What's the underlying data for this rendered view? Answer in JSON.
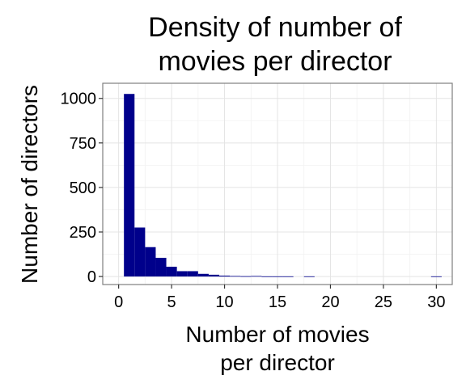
{
  "chart_data": {
    "type": "bar",
    "title_lines": [
      "Density of number of",
      "movies per director"
    ],
    "xlabel_lines": [
      "Number of movies",
      "per director"
    ],
    "ylabel": "Number of directors",
    "xlim": [
      -1.5,
      31.5
    ],
    "ylim": [
      -45,
      1085
    ],
    "x_ticks": [
      0,
      5,
      10,
      15,
      20,
      25,
      30
    ],
    "y_ticks": [
      0,
      250,
      500,
      750,
      1000
    ],
    "bin_width": 1,
    "bins": [
      {
        "x_start": 0.5,
        "x_end": 1.5,
        "count": 1025
      },
      {
        "x_start": 1.5,
        "x_end": 2.5,
        "count": 275
      },
      {
        "x_start": 2.5,
        "x_end": 3.5,
        "count": 165
      },
      {
        "x_start": 3.5,
        "x_end": 4.5,
        "count": 105
      },
      {
        "x_start": 4.5,
        "x_end": 5.5,
        "count": 55
      },
      {
        "x_start": 5.5,
        "x_end": 6.5,
        "count": 30
      },
      {
        "x_start": 6.5,
        "x_end": 7.5,
        "count": 30
      },
      {
        "x_start": 7.5,
        "x_end": 8.5,
        "count": 15
      },
      {
        "x_start": 8.5,
        "x_end": 9.5,
        "count": 10
      },
      {
        "x_start": 9.5,
        "x_end": 10.5,
        "count": 5
      },
      {
        "x_start": 10.5,
        "x_end": 11.5,
        "count": 3
      },
      {
        "x_start": 11.5,
        "x_end": 12.5,
        "count": 2
      },
      {
        "x_start": 12.5,
        "x_end": 13.5,
        "count": 3
      },
      {
        "x_start": 13.5,
        "x_end": 14.5,
        "count": 1
      },
      {
        "x_start": 14.5,
        "x_end": 15.5,
        "count": 1
      },
      {
        "x_start": 15.5,
        "x_end": 16.5,
        "count": 1
      },
      {
        "x_start": 16.5,
        "x_end": 17.5,
        "count": 0
      },
      {
        "x_start": 17.5,
        "x_end": 18.5,
        "count": 1
      },
      {
        "x_start": 18.5,
        "x_end": 19.5,
        "count": 0
      },
      {
        "x_start": 19.5,
        "x_end": 20.5,
        "count": 0
      },
      {
        "x_start": 20.5,
        "x_end": 21.5,
        "count": 0
      },
      {
        "x_start": 21.5,
        "x_end": 22.5,
        "count": 0
      },
      {
        "x_start": 22.5,
        "x_end": 23.5,
        "count": 0
      },
      {
        "x_start": 23.5,
        "x_end": 24.5,
        "count": 0
      },
      {
        "x_start": 24.5,
        "x_end": 25.5,
        "count": 0
      },
      {
        "x_start": 25.5,
        "x_end": 26.5,
        "count": 0
      },
      {
        "x_start": 26.5,
        "x_end": 27.5,
        "count": 0
      },
      {
        "x_start": 27.5,
        "x_end": 28.5,
        "count": 0
      },
      {
        "x_start": 28.5,
        "x_end": 29.5,
        "count": 0
      },
      {
        "x_start": 29.5,
        "x_end": 30.5,
        "count": 1
      }
    ],
    "bar_color": "#00008b",
    "background": "#ffffff",
    "grid": true,
    "legend": "none"
  }
}
